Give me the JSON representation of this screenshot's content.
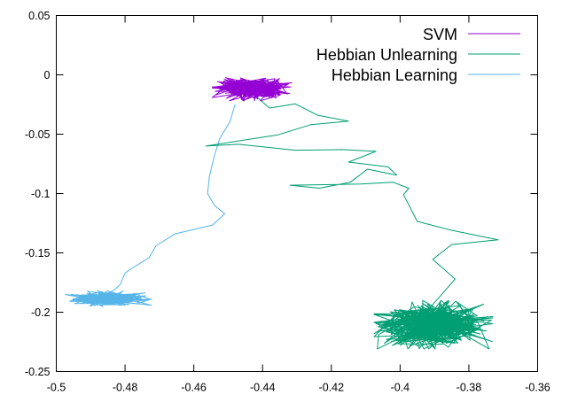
{
  "chart_data": {
    "type": "line",
    "title": "",
    "xlabel": "",
    "ylabel": "",
    "xlim": [
      -0.5,
      -0.36
    ],
    "ylim": [
      -0.25,
      0.05
    ],
    "x_ticks": [
      -0.5,
      -0.48,
      -0.46,
      -0.44,
      -0.42,
      -0.4,
      -0.38,
      -0.36
    ],
    "x_tick_labels": [
      "-0.5",
      "-0.48",
      "-0.46",
      "-0.44",
      "-0.42",
      "-0.4",
      "-0.38",
      "-0.36"
    ],
    "y_ticks": [
      0.05,
      0,
      -0.05,
      -0.1,
      -0.15,
      -0.2,
      -0.25
    ],
    "y_tick_labels": [
      "0.05",
      "0",
      "-0.05",
      "-0.1",
      "-0.15",
      "-0.2",
      "-0.25"
    ],
    "grid": false,
    "legend_position": "top-right",
    "series": [
      {
        "name": "SVM",
        "color": "#9400d3",
        "path": [],
        "cluster": {
          "center": [
            -0.4431,
            -0.0118
          ],
          "spread": [
            0.0048,
            0.0042
          ],
          "count": 320
        }
      },
      {
        "name": "Hebbian Unlearning",
        "color": "#009e73",
        "path": [
          [
            -0.4425,
            -0.0165
          ],
          [
            -0.438,
            -0.028
          ],
          [
            -0.4305,
            -0.0245
          ],
          [
            -0.424,
            -0.034
          ],
          [
            -0.415,
            -0.039
          ],
          [
            -0.426,
            -0.042
          ],
          [
            -0.4355,
            -0.0505
          ],
          [
            -0.441,
            -0.053
          ],
          [
            -0.4565,
            -0.06
          ],
          [
            -0.447,
            -0.0585
          ],
          [
            -0.4305,
            -0.0635
          ],
          [
            -0.417,
            -0.063
          ],
          [
            -0.407,
            -0.0645
          ],
          [
            -0.415,
            -0.0735
          ],
          [
            -0.4035,
            -0.0775
          ],
          [
            -0.401,
            -0.0845
          ],
          [
            -0.4095,
            -0.0795
          ],
          [
            -0.4145,
            -0.0905
          ],
          [
            -0.4235,
            -0.0955
          ],
          [
            -0.432,
            -0.093
          ],
          [
            -0.4115,
            -0.092
          ],
          [
            -0.402,
            -0.0905
          ],
          [
            -0.3975,
            -0.0955
          ],
          [
            -0.399,
            -0.101
          ],
          [
            -0.395,
            -0.1235
          ],
          [
            -0.385,
            -0.131
          ],
          [
            -0.3715,
            -0.139
          ],
          [
            -0.385,
            -0.143
          ],
          [
            -0.3905,
            -0.1555
          ],
          [
            -0.384,
            -0.172
          ],
          [
            -0.387,
            -0.182
          ],
          [
            -0.3905,
            -0.1935
          ],
          [
            -0.3945,
            -0.2035
          ]
        ],
        "cluster": {
          "center": [
            -0.3903,
            -0.2105
          ],
          "spread": [
            0.0072,
            0.0085
          ],
          "count": 520
        }
      },
      {
        "name": "Hebbian Learning",
        "color": "#56b4e9",
        "path": [
          [
            -0.448,
            -0.025
          ],
          [
            -0.4495,
            -0.0395
          ],
          [
            -0.4525,
            -0.054
          ],
          [
            -0.454,
            -0.068
          ],
          [
            -0.4555,
            -0.086
          ],
          [
            -0.456,
            -0.1
          ],
          [
            -0.454,
            -0.11
          ],
          [
            -0.451,
            -0.117
          ],
          [
            -0.4545,
            -0.1265
          ],
          [
            -0.4655,
            -0.134
          ],
          [
            -0.471,
            -0.144
          ],
          [
            -0.473,
            -0.154
          ],
          [
            -0.478,
            -0.163
          ],
          [
            -0.48,
            -0.167
          ],
          [
            -0.4815,
            -0.177
          ],
          [
            -0.4835,
            -0.182
          ]
        ],
        "cluster": {
          "center": [
            -0.4848,
            -0.1885
          ],
          "spread": [
            0.0052,
            0.0028
          ],
          "count": 240
        }
      }
    ]
  }
}
